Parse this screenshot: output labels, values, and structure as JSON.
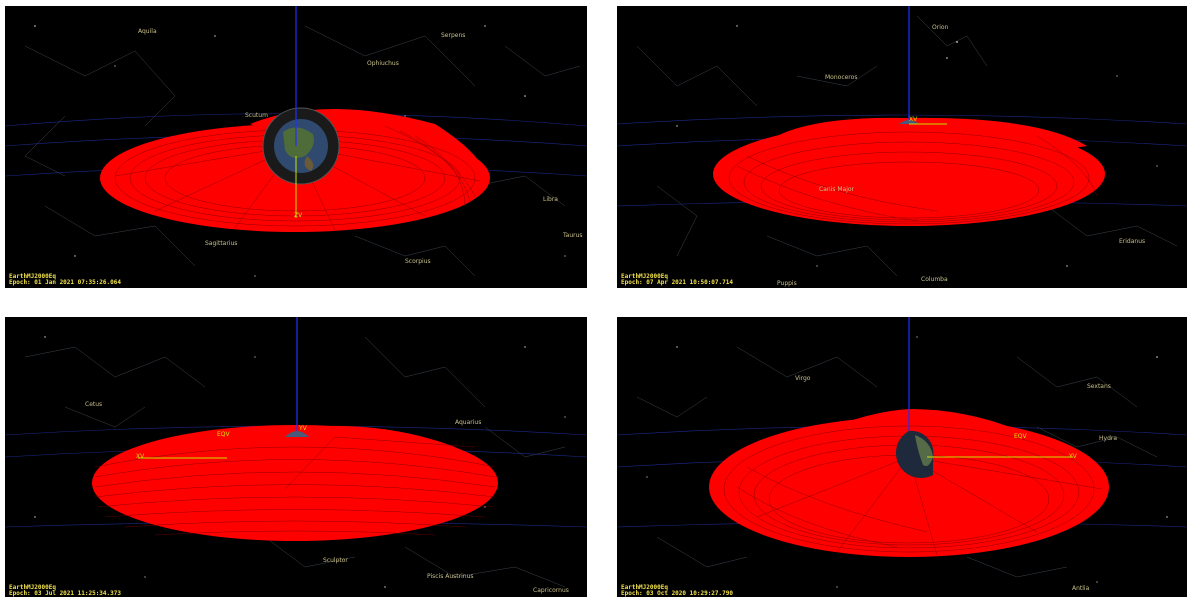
{
  "panels": [
    {
      "frame": "EarthMJ2000Eq",
      "epoch": "Epoch: 01 Jan 2021 07:35:26.064",
      "constellations": [
        "Aquila",
        "Serpens",
        "Ophiuchus",
        "Scutum",
        "Libra",
        "Sagittarius",
        "Scorpius",
        "Taurus"
      ],
      "axis_labels": [
        "ZV"
      ]
    },
    {
      "frame": "EarthMJ2000Eq",
      "epoch": "Epoch: 07 Apr 2021 10:50:07.714",
      "constellations": [
        "Orion",
        "Monoceros",
        "Canis Major",
        "Eridanus",
        "Puppis",
        "Columba"
      ],
      "axis_labels": [
        "XV"
      ]
    },
    {
      "frame": "EarthMJ2000Eq",
      "epoch": "Epoch: 03 Jul 2021 11:25:34.373",
      "constellations": [
        "Cetus",
        "Aquarius",
        "Sculptor",
        "Piscis Austrinus",
        "Capricornus"
      ],
      "axis_labels": [
        "EQV",
        "XV",
        "YV"
      ]
    },
    {
      "frame": "EarthMJ2000Eq",
      "epoch": "Epoch: 03 Oct 2020 10:29:27.790",
      "constellations": [
        "Virgo",
        "Sextans",
        "Hydra",
        "Antlia"
      ],
      "axis_labels": [
        "EQV",
        "YV"
      ]
    }
  ]
}
